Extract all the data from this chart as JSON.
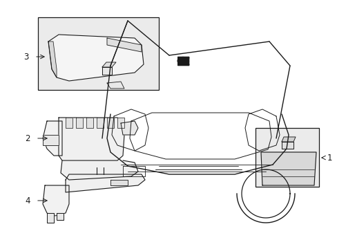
{
  "background_color": "#ffffff",
  "line_color": "#1a1a1a",
  "figure_width": 4.89,
  "figure_height": 3.6,
  "dpi": 100
}
